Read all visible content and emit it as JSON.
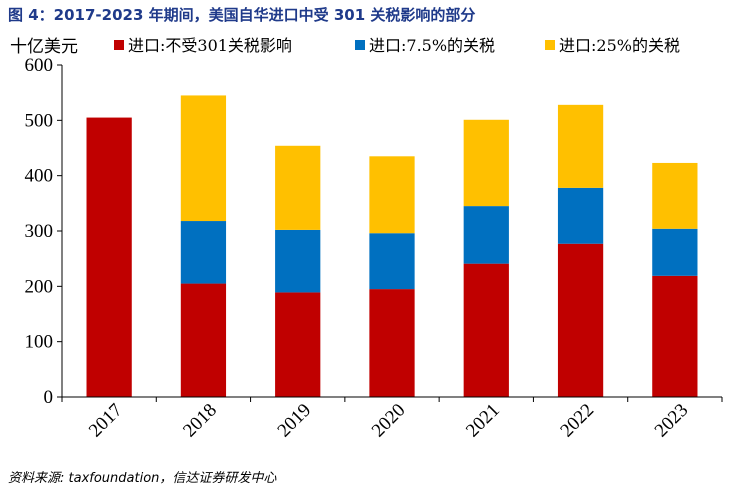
{
  "title": "图 4：2017-2023 年期间，美国自华进口中受 301 关税影响的部分",
  "source": "资料来源: taxfoundation，信达证券研发中心",
  "chart_data": {
    "type": "bar",
    "stacked": true,
    "ylabel": "十亿美元",
    "ylim": [
      0,
      600
    ],
    "yticks": [
      0,
      100,
      200,
      300,
      400,
      500,
      600
    ],
    "categories": [
      "2017",
      "2018",
      "2019",
      "2020",
      "2021",
      "2022",
      "2023"
    ],
    "series": [
      {
        "name": "进口:不受301关税影响",
        "color": "#c00000",
        "values": [
          505,
          205,
          189,
          195,
          241,
          277,
          219
        ]
      },
      {
        "name": "进口:7.5%的关税",
        "color": "#0070c0",
        "values": [
          0,
          113,
          113,
          101,
          104,
          101,
          85
        ]
      },
      {
        "name": "进口:25%的关税",
        "color": "#ffc000",
        "values": [
          0,
          227,
          152,
          139,
          156,
          150,
          119
        ]
      }
    ],
    "legend_position": "top"
  }
}
